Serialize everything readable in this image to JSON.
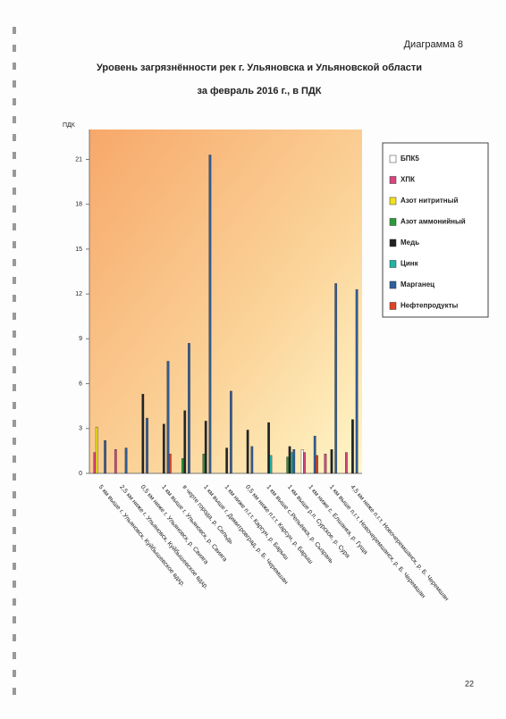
{
  "header": "Диаграмма 8",
  "page_number": "22",
  "chart_data": {
    "type": "bar",
    "title": "Уровень загрязнённости рек г. Ульяновска и Ульяновской области",
    "subtitle": "за февраль 2016 г., в ПДК",
    "y_label": "ПДК",
    "categories": [
      "5 км выше г. Ульяновск, Куйбышевское вдхр.",
      "2,5 км ниже г. Ульяновск, Куйбышевское вдхр.",
      "0,5 км ниже г. Ульяновск, р. Свияга",
      "1 км выше г. Ульяновск, р. Свияга",
      "в черте города, р. Сельдь",
      "1 км выше г. Димитровград, р. Б. Черемшан",
      "1 км ниже п.г.т. Карсун, р. Барыш",
      "0,5 км ниже п.г.т. Карсун, р. Барыш",
      "1 км выше с.Репьёвка, р. Сызрань",
      "1 км выше р.п. Сурское, р. Сура",
      "1 км ниже с. Елшанка, р. Гуща",
      "1 км выше п.г.т. Новочеремшанск, р. Б. Черемшан",
      "4,5 км ниже п.г.т. Новочеремшанск, р. Б. Черемшан"
    ],
    "series": [
      {
        "name": "БПК5",
        "color": "#ffffff",
        "values": [
          null,
          null,
          null,
          null,
          null,
          null,
          null,
          null,
          null,
          null,
          1.6,
          null,
          null
        ]
      },
      {
        "name": "ХПК",
        "color": "#d8457e",
        "values": [
          1.4,
          1.6,
          null,
          null,
          null,
          null,
          null,
          null,
          null,
          null,
          1.4,
          1.3,
          1.4
        ]
      },
      {
        "name": "Азот нитритный",
        "color": "#f2e21e",
        "values": [
          3.1,
          null,
          null,
          null,
          null,
          null,
          null,
          null,
          null,
          null,
          null,
          null,
          null
        ]
      },
      {
        "name": "Азот аммонийный",
        "color": "#2a9a3a",
        "values": [
          null,
          null,
          null,
          null,
          1.0,
          1.3,
          null,
          null,
          null,
          1.1,
          null,
          null,
          null
        ]
      },
      {
        "name": "Медь",
        "color": "#222222",
        "values": [
          null,
          null,
          5.3,
          3.3,
          4.2,
          3.5,
          1.7,
          2.9,
          3.4,
          1.8,
          null,
          1.6,
          3.6
        ]
      },
      {
        "name": "Цинк",
        "color": "#22b3a3",
        "values": [
          null,
          null,
          null,
          null,
          null,
          null,
          null,
          null,
          1.2,
          1.4,
          null,
          null,
          null
        ]
      },
      {
        "name": "Марганец",
        "color": "#2f5f9f",
        "values": [
          2.2,
          1.7,
          3.7,
          7.5,
          8.7,
          21.3,
          5.5,
          1.8,
          null,
          1.6,
          2.5,
          12.7,
          12.3
        ]
      },
      {
        "name": "Нефтепродукты",
        "color": "#e04422",
        "values": [
          null,
          null,
          null,
          1.3,
          null,
          null,
          null,
          null,
          null,
          null,
          1.2,
          null,
          null
        ]
      }
    ],
    "ylim": [
      0,
      23
    ],
    "yticks": [
      0,
      3,
      6,
      9,
      12,
      15,
      18,
      21
    ],
    "grid": false,
    "legend": "right"
  }
}
